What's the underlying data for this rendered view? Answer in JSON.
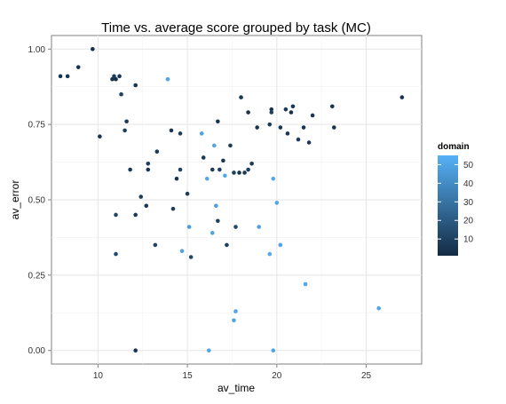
{
  "chart_data": {
    "type": "scatter",
    "title": "Time vs. average score grouped by task (MC)",
    "xlabel": "av_time",
    "ylabel": "av_error",
    "xlim": [
      7.4,
      28.1
    ],
    "ylim": [
      -0.045,
      1.045
    ],
    "xticks": [
      10,
      15,
      20,
      25
    ],
    "yticks": [
      0.0,
      0.25,
      0.5,
      0.75,
      1.0
    ],
    "ytick_labels": [
      "0.00",
      "0.25",
      "0.50",
      "0.75",
      "1.00"
    ],
    "grid": true,
    "legend": {
      "title": "domain",
      "placement": "right",
      "min": 1,
      "max": 55,
      "ticks": [
        10,
        20,
        30,
        40,
        50
      ],
      "colors": {
        "low": "#132b43",
        "high": "#56b1f7"
      }
    },
    "points": [
      {
        "x": 7.9,
        "y": 0.91,
        "c": 5
      },
      {
        "x": 8.3,
        "y": 0.91,
        "c": 6
      },
      {
        "x": 8.9,
        "y": 0.94,
        "c": 4
      },
      {
        "x": 9.7,
        "y": 1.0,
        "c": 3
      },
      {
        "x": 10.1,
        "y": 0.71,
        "c": 6
      },
      {
        "x": 10.8,
        "y": 0.9,
        "c": 5
      },
      {
        "x": 10.9,
        "y": 0.91,
        "c": 8
      },
      {
        "x": 11.0,
        "y": 0.9,
        "c": 4
      },
      {
        "x": 11.2,
        "y": 0.91,
        "c": 6
      },
      {
        "x": 11.3,
        "y": 0.85,
        "c": 10
      },
      {
        "x": 11.0,
        "y": 0.45,
        "c": 12
      },
      {
        "x": 11.0,
        "y": 0.32,
        "c": 14
      },
      {
        "x": 11.5,
        "y": 0.73,
        "c": 9
      },
      {
        "x": 11.6,
        "y": 0.76,
        "c": 7
      },
      {
        "x": 11.8,
        "y": 0.6,
        "c": 6
      },
      {
        "x": 12.1,
        "y": 0.88,
        "c": 5
      },
      {
        "x": 12.1,
        "y": 0.45,
        "c": 7
      },
      {
        "x": 12.1,
        "y": 0.0,
        "c": 5
      },
      {
        "x": 12.4,
        "y": 0.51,
        "c": 8
      },
      {
        "x": 12.7,
        "y": 0.48,
        "c": 6
      },
      {
        "x": 12.8,
        "y": 0.62,
        "c": 9
      },
      {
        "x": 12.8,
        "y": 0.6,
        "c": 6
      },
      {
        "x": 13.2,
        "y": 0.35,
        "c": 11
      },
      {
        "x": 13.3,
        "y": 0.66,
        "c": 7
      },
      {
        "x": 13.9,
        "y": 0.9,
        "c": 50
      },
      {
        "x": 14.1,
        "y": 0.73,
        "c": 6
      },
      {
        "x": 14.2,
        "y": 0.47,
        "c": 9
      },
      {
        "x": 14.4,
        "y": 0.57,
        "c": 5
      },
      {
        "x": 14.6,
        "y": 0.6,
        "c": 10
      },
      {
        "x": 14.6,
        "y": 0.72,
        "c": 9
      },
      {
        "x": 14.7,
        "y": 0.33,
        "c": 50
      },
      {
        "x": 15.0,
        "y": 0.52,
        "c": 8
      },
      {
        "x": 15.1,
        "y": 0.41,
        "c": 47
      },
      {
        "x": 15.2,
        "y": 0.31,
        "c": 12
      },
      {
        "x": 15.8,
        "y": 0.72,
        "c": 49
      },
      {
        "x": 15.9,
        "y": 0.64,
        "c": 7
      },
      {
        "x": 16.1,
        "y": 0.57,
        "c": 52
      },
      {
        "x": 16.2,
        "y": 0.0,
        "c": 51
      },
      {
        "x": 16.4,
        "y": 0.39,
        "c": 50
      },
      {
        "x": 16.4,
        "y": 0.6,
        "c": 8
      },
      {
        "x": 16.5,
        "y": 0.68,
        "c": 50
      },
      {
        "x": 16.6,
        "y": 0.48,
        "c": 48
      },
      {
        "x": 16.7,
        "y": 0.76,
        "c": 5
      },
      {
        "x": 16.7,
        "y": 0.43,
        "c": 10
      },
      {
        "x": 16.8,
        "y": 0.6,
        "c": 9
      },
      {
        "x": 17.0,
        "y": 0.63,
        "c": 6
      },
      {
        "x": 17.1,
        "y": 0.58,
        "c": 52
      },
      {
        "x": 17.2,
        "y": 0.35,
        "c": 9
      },
      {
        "x": 17.4,
        "y": 0.68,
        "c": 8
      },
      {
        "x": 17.6,
        "y": 0.59,
        "c": 10
      },
      {
        "x": 17.6,
        "y": 0.1,
        "c": 50
      },
      {
        "x": 17.7,
        "y": 0.13,
        "c": 50
      },
      {
        "x": 17.7,
        "y": 0.41,
        "c": 13
      },
      {
        "x": 17.9,
        "y": 0.59,
        "c": 5
      },
      {
        "x": 18.0,
        "y": 0.84,
        "c": 6
      },
      {
        "x": 18.2,
        "y": 0.59,
        "c": 8
      },
      {
        "x": 18.4,
        "y": 0.79,
        "c": 4
      },
      {
        "x": 18.4,
        "y": 0.6,
        "c": 9
      },
      {
        "x": 18.6,
        "y": 0.62,
        "c": 7
      },
      {
        "x": 18.9,
        "y": 0.74,
        "c": 5
      },
      {
        "x": 19.0,
        "y": 0.41,
        "c": 48
      },
      {
        "x": 19.6,
        "y": 0.75,
        "c": 7
      },
      {
        "x": 19.7,
        "y": 0.8,
        "c": 5
      },
      {
        "x": 19.7,
        "y": 0.79,
        "c": 10
      },
      {
        "x": 19.6,
        "y": 0.32,
        "c": 52
      },
      {
        "x": 19.8,
        "y": 0.57,
        "c": 51
      },
      {
        "x": 19.8,
        "y": 0.0,
        "c": 50
      },
      {
        "x": 20.0,
        "y": 0.49,
        "c": 50
      },
      {
        "x": 20.2,
        "y": 0.74,
        "c": 6
      },
      {
        "x": 20.2,
        "y": 0.35,
        "c": 49
      },
      {
        "x": 20.5,
        "y": 0.8,
        "c": 8
      },
      {
        "x": 20.6,
        "y": 0.72,
        "c": 6
      },
      {
        "x": 20.8,
        "y": 0.79,
        "c": 4
      },
      {
        "x": 20.9,
        "y": 0.81,
        "c": 7
      },
      {
        "x": 21.2,
        "y": 0.7,
        "c": 9
      },
      {
        "x": 21.5,
        "y": 0.74,
        "c": 5
      },
      {
        "x": 21.6,
        "y": 0.22,
        "c": 50
      },
      {
        "x": 21.8,
        "y": 0.69,
        "c": 7
      },
      {
        "x": 22.0,
        "y": 0.78,
        "c": 6
      },
      {
        "x": 23.1,
        "y": 0.81,
        "c": 5
      },
      {
        "x": 23.2,
        "y": 0.74,
        "c": 4
      },
      {
        "x": 25.7,
        "y": 0.14,
        "c": 50
      },
      {
        "x": 27.0,
        "y": 0.84,
        "c": 5
      }
    ]
  }
}
